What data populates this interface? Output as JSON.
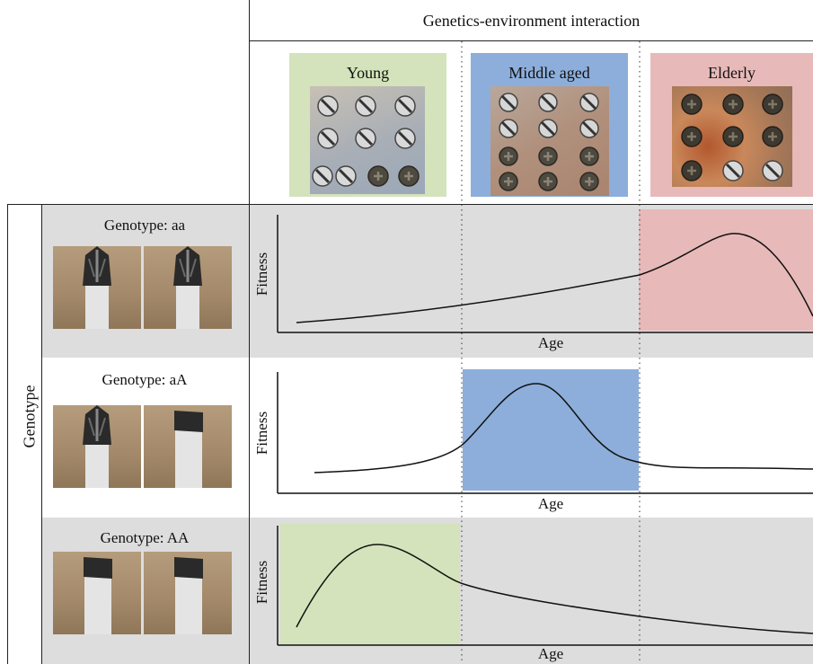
{
  "header": {
    "title": "Genetics-environment interaction"
  },
  "stages": [
    {
      "label": "Young",
      "color": "#d4e3bb"
    },
    {
      "label": "Middle aged",
      "color": "#8daedb"
    },
    {
      "label": "Elderly",
      "color": "#e8b9b9"
    }
  ],
  "side_label": "Genotype",
  "rows": [
    {
      "genotype_label": "Genotype: aa",
      "tips": [
        "phillips",
        "phillips"
      ],
      "shaded": true,
      "highlight_stage": 2,
      "ylabel": "Fitness",
      "xlabel": "Age"
    },
    {
      "genotype_label": "Genotype: aA",
      "tips": [
        "phillips",
        "flat"
      ],
      "shaded": false,
      "highlight_stage": 1,
      "ylabel": "Fitness",
      "xlabel": "Age"
    },
    {
      "genotype_label": "Genotype: AA",
      "tips": [
        "flat",
        "flat"
      ],
      "shaded": true,
      "highlight_stage": 0,
      "ylabel": "Fitness",
      "xlabel": "Age"
    }
  ],
  "colors": {
    "row_shade": "#dddddd",
    "line": "#111111"
  }
}
